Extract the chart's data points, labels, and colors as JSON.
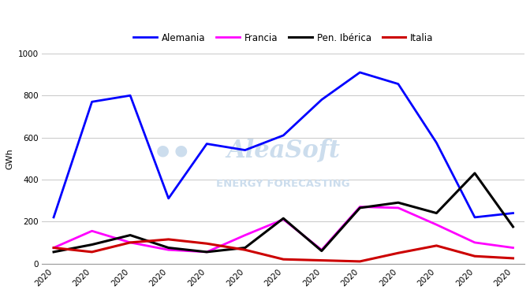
{
  "alemania": [
    220,
    770,
    800,
    310,
    570,
    540,
    610,
    780,
    910,
    855,
    575,
    220,
    240
  ],
  "francia": [
    75,
    155,
    100,
    65,
    55,
    135,
    210,
    65,
    270,
    265,
    185,
    100,
    75
  ],
  "pen_iberica": [
    55,
    90,
    135,
    75,
    55,
    75,
    215,
    60,
    265,
    290,
    240,
    430,
    175
  ],
  "italia": [
    75,
    55,
    100,
    115,
    95,
    65,
    20,
    15,
    10,
    50,
    85,
    35,
    25
  ],
  "colors": {
    "Alemania": "#0000ff",
    "Francia": "#ff00ff",
    "Pen. Ibérica": "#000000",
    "Italia": "#cc0000"
  },
  "linewidths": {
    "Alemania": 2.0,
    "Francia": 2.0,
    "Pen. Ibérica": 2.2,
    "Italia": 2.2
  },
  "ylabel": "GWh",
  "ylim": [
    0,
    1000
  ],
  "yticks": [
    0,
    200,
    400,
    600,
    800,
    1000
  ],
  "n_points": 13,
  "background_color": "#ffffff",
  "legend_labels": [
    "Alemania",
    "Francia",
    "Pen. Ibérica",
    "Italia"
  ],
  "legend_fontsize": 8.5,
  "axis_fontsize": 8,
  "tick_fontsize": 7.5,
  "watermark_color": "#ccdded",
  "watermark_alpha": 1.0
}
